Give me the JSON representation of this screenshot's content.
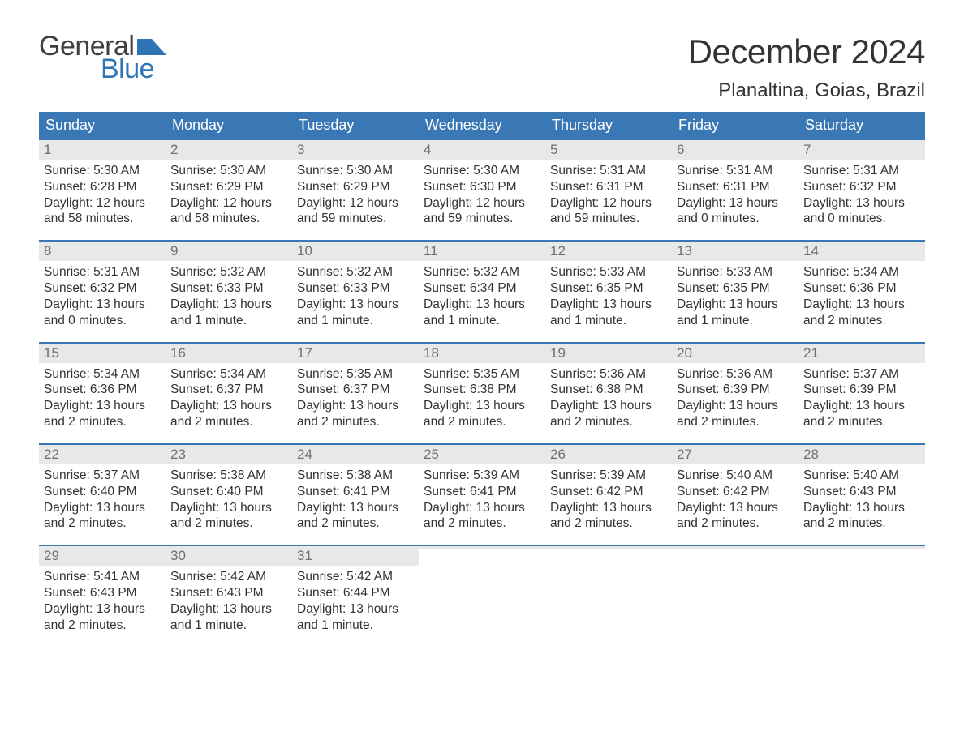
{
  "brand": {
    "general": "General",
    "blue": "Blue"
  },
  "title": "December 2024",
  "location": "Planaltina, Goias, Brazil",
  "colors": {
    "header_bg": "#3a78b5",
    "header_text": "#ffffff",
    "daynum_bg": "#e8e8e8",
    "daynum_text": "#6f6f6f",
    "body_text": "#333333",
    "week_border": "#3a78b5",
    "logo_gray": "#3f3f3f",
    "logo_blue": "#2f74b5",
    "page_bg": "#ffffff"
  },
  "typography": {
    "month_title_fontsize": 42,
    "location_fontsize": 24,
    "day_header_fontsize": 18,
    "day_num_fontsize": 17,
    "body_fontsize": 15.5,
    "logo_fontsize": 34,
    "font_family": "Arial"
  },
  "day_headers": [
    "Sunday",
    "Monday",
    "Tuesday",
    "Wednesday",
    "Thursday",
    "Friday",
    "Saturday"
  ],
  "weeks": [
    [
      {
        "n": "1",
        "sunrise": "Sunrise: 5:30 AM",
        "sunset": "Sunset: 6:28 PM",
        "d1": "Daylight: 12 hours",
        "d2": "and 58 minutes."
      },
      {
        "n": "2",
        "sunrise": "Sunrise: 5:30 AM",
        "sunset": "Sunset: 6:29 PM",
        "d1": "Daylight: 12 hours",
        "d2": "and 58 minutes."
      },
      {
        "n": "3",
        "sunrise": "Sunrise: 5:30 AM",
        "sunset": "Sunset: 6:29 PM",
        "d1": "Daylight: 12 hours",
        "d2": "and 59 minutes."
      },
      {
        "n": "4",
        "sunrise": "Sunrise: 5:30 AM",
        "sunset": "Sunset: 6:30 PM",
        "d1": "Daylight: 12 hours",
        "d2": "and 59 minutes."
      },
      {
        "n": "5",
        "sunrise": "Sunrise: 5:31 AM",
        "sunset": "Sunset: 6:31 PM",
        "d1": "Daylight: 12 hours",
        "d2": "and 59 minutes."
      },
      {
        "n": "6",
        "sunrise": "Sunrise: 5:31 AM",
        "sunset": "Sunset: 6:31 PM",
        "d1": "Daylight: 13 hours",
        "d2": "and 0 minutes."
      },
      {
        "n": "7",
        "sunrise": "Sunrise: 5:31 AM",
        "sunset": "Sunset: 6:32 PM",
        "d1": "Daylight: 13 hours",
        "d2": "and 0 minutes."
      }
    ],
    [
      {
        "n": "8",
        "sunrise": "Sunrise: 5:31 AM",
        "sunset": "Sunset: 6:32 PM",
        "d1": "Daylight: 13 hours",
        "d2": "and 0 minutes."
      },
      {
        "n": "9",
        "sunrise": "Sunrise: 5:32 AM",
        "sunset": "Sunset: 6:33 PM",
        "d1": "Daylight: 13 hours",
        "d2": "and 1 minute."
      },
      {
        "n": "10",
        "sunrise": "Sunrise: 5:32 AM",
        "sunset": "Sunset: 6:33 PM",
        "d1": "Daylight: 13 hours",
        "d2": "and 1 minute."
      },
      {
        "n": "11",
        "sunrise": "Sunrise: 5:32 AM",
        "sunset": "Sunset: 6:34 PM",
        "d1": "Daylight: 13 hours",
        "d2": "and 1 minute."
      },
      {
        "n": "12",
        "sunrise": "Sunrise: 5:33 AM",
        "sunset": "Sunset: 6:35 PM",
        "d1": "Daylight: 13 hours",
        "d2": "and 1 minute."
      },
      {
        "n": "13",
        "sunrise": "Sunrise: 5:33 AM",
        "sunset": "Sunset: 6:35 PM",
        "d1": "Daylight: 13 hours",
        "d2": "and 1 minute."
      },
      {
        "n": "14",
        "sunrise": "Sunrise: 5:34 AM",
        "sunset": "Sunset: 6:36 PM",
        "d1": "Daylight: 13 hours",
        "d2": "and 2 minutes."
      }
    ],
    [
      {
        "n": "15",
        "sunrise": "Sunrise: 5:34 AM",
        "sunset": "Sunset: 6:36 PM",
        "d1": "Daylight: 13 hours",
        "d2": "and 2 minutes."
      },
      {
        "n": "16",
        "sunrise": "Sunrise: 5:34 AM",
        "sunset": "Sunset: 6:37 PM",
        "d1": "Daylight: 13 hours",
        "d2": "and 2 minutes."
      },
      {
        "n": "17",
        "sunrise": "Sunrise: 5:35 AM",
        "sunset": "Sunset: 6:37 PM",
        "d1": "Daylight: 13 hours",
        "d2": "and 2 minutes."
      },
      {
        "n": "18",
        "sunrise": "Sunrise: 5:35 AM",
        "sunset": "Sunset: 6:38 PM",
        "d1": "Daylight: 13 hours",
        "d2": "and 2 minutes."
      },
      {
        "n": "19",
        "sunrise": "Sunrise: 5:36 AM",
        "sunset": "Sunset: 6:38 PM",
        "d1": "Daylight: 13 hours",
        "d2": "and 2 minutes."
      },
      {
        "n": "20",
        "sunrise": "Sunrise: 5:36 AM",
        "sunset": "Sunset: 6:39 PM",
        "d1": "Daylight: 13 hours",
        "d2": "and 2 minutes."
      },
      {
        "n": "21",
        "sunrise": "Sunrise: 5:37 AM",
        "sunset": "Sunset: 6:39 PM",
        "d1": "Daylight: 13 hours",
        "d2": "and 2 minutes."
      }
    ],
    [
      {
        "n": "22",
        "sunrise": "Sunrise: 5:37 AM",
        "sunset": "Sunset: 6:40 PM",
        "d1": "Daylight: 13 hours",
        "d2": "and 2 minutes."
      },
      {
        "n": "23",
        "sunrise": "Sunrise: 5:38 AM",
        "sunset": "Sunset: 6:40 PM",
        "d1": "Daylight: 13 hours",
        "d2": "and 2 minutes."
      },
      {
        "n": "24",
        "sunrise": "Sunrise: 5:38 AM",
        "sunset": "Sunset: 6:41 PM",
        "d1": "Daylight: 13 hours",
        "d2": "and 2 minutes."
      },
      {
        "n": "25",
        "sunrise": "Sunrise: 5:39 AM",
        "sunset": "Sunset: 6:41 PM",
        "d1": "Daylight: 13 hours",
        "d2": "and 2 minutes."
      },
      {
        "n": "26",
        "sunrise": "Sunrise: 5:39 AM",
        "sunset": "Sunset: 6:42 PM",
        "d1": "Daylight: 13 hours",
        "d2": "and 2 minutes."
      },
      {
        "n": "27",
        "sunrise": "Sunrise: 5:40 AM",
        "sunset": "Sunset: 6:42 PM",
        "d1": "Daylight: 13 hours",
        "d2": "and 2 minutes."
      },
      {
        "n": "28",
        "sunrise": "Sunrise: 5:40 AM",
        "sunset": "Sunset: 6:43 PM",
        "d1": "Daylight: 13 hours",
        "d2": "and 2 minutes."
      }
    ],
    [
      {
        "n": "29",
        "sunrise": "Sunrise: 5:41 AM",
        "sunset": "Sunset: 6:43 PM",
        "d1": "Daylight: 13 hours",
        "d2": "and 2 minutes."
      },
      {
        "n": "30",
        "sunrise": "Sunrise: 5:42 AM",
        "sunset": "Sunset: 6:43 PM",
        "d1": "Daylight: 13 hours",
        "d2": "and 1 minute."
      },
      {
        "n": "31",
        "sunrise": "Sunrise: 5:42 AM",
        "sunset": "Sunset: 6:44 PM",
        "d1": "Daylight: 13 hours",
        "d2": "and 1 minute."
      },
      {
        "empty": true
      },
      {
        "empty": true
      },
      {
        "empty": true
      },
      {
        "empty": true
      }
    ]
  ]
}
